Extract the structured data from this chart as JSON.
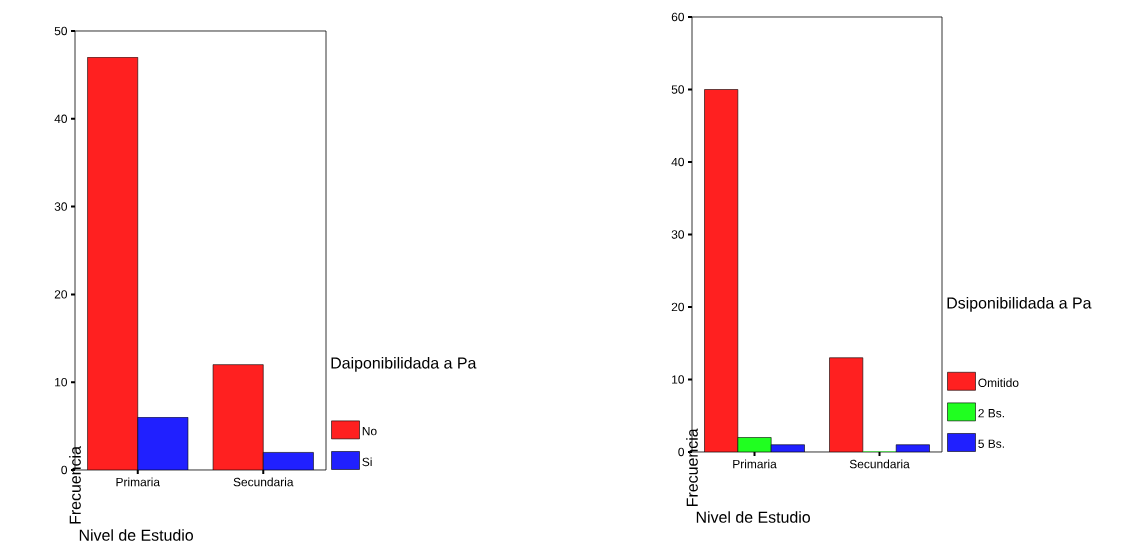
{
  "chart_data": [
    {
      "type": "bar",
      "categories": [
        "Primaria",
        "Secundaria"
      ],
      "xlabel": "Nivel de Estudio",
      "ylabel": "Frecuencia",
      "legend_title": "Daiponibilidada a Pa",
      "legend": "right",
      "ylim": [
        0,
        50
      ],
      "yticks": [
        0,
        10,
        20,
        30,
        40,
        50
      ],
      "grid": false,
      "series": [
        {
          "name": "No",
          "color": "#ff2020",
          "values": [
            47,
            12
          ]
        },
        {
          "name": "Si",
          "color": "#2020ff",
          "values": [
            6,
            2
          ]
        }
      ]
    },
    {
      "type": "bar",
      "categories": [
        "Primaria",
        "Secundaria"
      ],
      "xlabel": "Nivel de Estudio",
      "ylabel": "Frecuencia",
      "legend_title": "Dsiponibilidada a Pa",
      "legend": "right",
      "ylim": [
        0,
        60
      ],
      "yticks": [
        0,
        10,
        20,
        30,
        40,
        50,
        60
      ],
      "grid": false,
      "series": [
        {
          "name": "Omitido",
          "color": "#ff2020",
          "values": [
            50,
            13
          ]
        },
        {
          "name": "2 Bs.",
          "color": "#20ff20",
          "values": [
            2,
            0
          ]
        },
        {
          "name": "5 Bs.",
          "color": "#2020ff",
          "values": [
            1,
            1
          ]
        }
      ]
    }
  ]
}
